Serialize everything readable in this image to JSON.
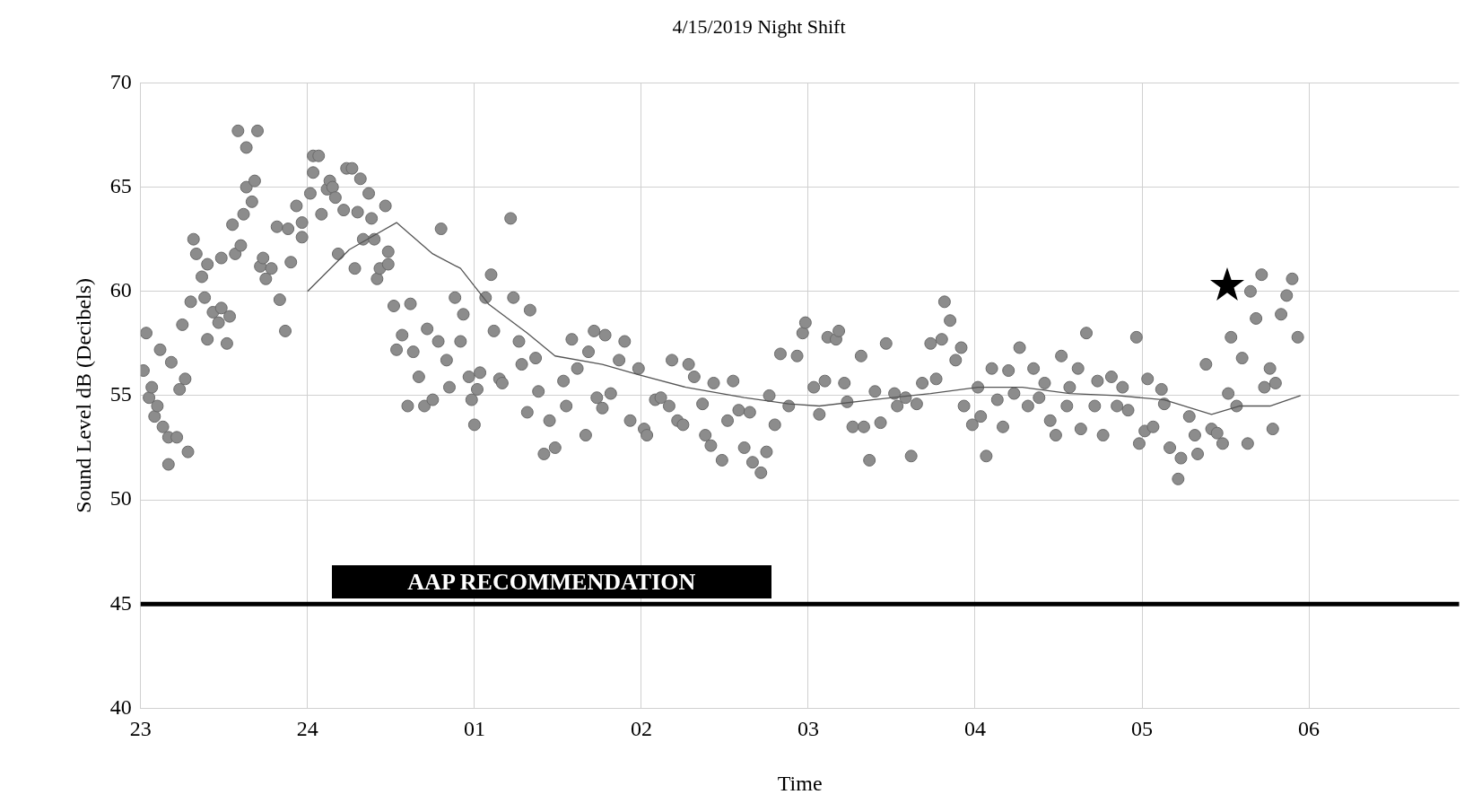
{
  "chart_data": {
    "type": "scatter",
    "title": "4/15/2019 Night Shift",
    "xlabel": "Time",
    "ylabel": "Sound Level dB (Decibels)",
    "xlim": [
      "2019-04-15T23:00",
      "2019-04-16T06:54"
    ],
    "ylim": [
      40,
      70
    ],
    "xticks": [
      {
        "value": "2019-04-15T23:00",
        "label": "23"
      },
      {
        "value": "2019-04-16T00:00",
        "label": "24"
      },
      {
        "value": "2019-04-16T01:00",
        "label": "01"
      },
      {
        "value": "2019-04-16T02:00",
        "label": "02"
      },
      {
        "value": "2019-04-16T03:00",
        "label": "03"
      },
      {
        "value": "2019-04-16T04:00",
        "label": "04"
      },
      {
        "value": "2019-04-16T05:00",
        "label": "05"
      },
      {
        "value": "2019-04-16T06:00",
        "label": "06"
      }
    ],
    "yticks": [
      40,
      45,
      50,
      55,
      60,
      65,
      70
    ],
    "grid": true,
    "legend": false,
    "marker": "circle",
    "ref_lines": [
      {
        "axis": "y",
        "value": 45,
        "label": "AAP RECOMMENDATION",
        "color": "#000000",
        "line_style": "solid"
      }
    ],
    "series": [
      {
        "color": "#8c8c8c",
        "x": [
          "2019-04-15T23:01",
          "2019-04-15T23:02",
          "2019-04-15T23:03",
          "2019-04-15T23:04",
          "2019-04-15T23:05",
          "2019-04-15T23:06",
          "2019-04-15T23:07",
          "2019-04-15T23:08",
          "2019-04-15T23:10",
          "2019-04-15T23:10",
          "2019-04-15T23:11",
          "2019-04-15T23:13",
          "2019-04-15T23:14",
          "2019-04-15T23:15",
          "2019-04-15T23:16",
          "2019-04-15T23:17",
          "2019-04-15T23:18",
          "2019-04-15T23:19",
          "2019-04-15T23:20",
          "2019-04-15T23:22",
          "2019-04-15T23:23",
          "2019-04-15T23:24",
          "2019-04-15T23:24",
          "2019-04-15T23:26",
          "2019-04-15T23:28",
          "2019-04-15T23:29",
          "2019-04-15T23:29",
          "2019-04-15T23:31",
          "2019-04-15T23:32",
          "2019-04-15T23:33",
          "2019-04-15T23:34",
          "2019-04-15T23:35",
          "2019-04-15T23:36",
          "2019-04-15T23:37",
          "2019-04-15T23:38",
          "2019-04-15T23:38",
          "2019-04-15T23:40",
          "2019-04-15T23:41",
          "2019-04-15T23:42",
          "2019-04-15T23:43",
          "2019-04-15T23:44",
          "2019-04-15T23:45",
          "2019-04-15T23:47",
          "2019-04-15T23:49",
          "2019-04-15T23:50",
          "2019-04-15T23:52",
          "2019-04-15T23:53",
          "2019-04-15T23:54",
          "2019-04-15T23:56",
          "2019-04-15T23:58",
          "2019-04-15T23:58",
          "2019-04-16T00:01",
          "2019-04-16T00:02",
          "2019-04-16T00:02",
          "2019-04-16T00:04",
          "2019-04-16T00:05",
          "2019-04-16T00:07",
          "2019-04-16T00:08",
          "2019-04-16T00:09",
          "2019-04-16T00:10",
          "2019-04-16T00:11",
          "2019-04-16T00:13",
          "2019-04-16T00:14",
          "2019-04-16T00:16",
          "2019-04-16T00:17",
          "2019-04-16T00:18",
          "2019-04-16T00:19",
          "2019-04-16T00:20",
          "2019-04-16T00:22",
          "2019-04-16T00:23",
          "2019-04-16T00:24",
          "2019-04-16T00:25",
          "2019-04-16T00:26",
          "2019-04-16T00:28",
          "2019-04-16T00:29",
          "2019-04-16T00:29",
          "2019-04-16T00:31",
          "2019-04-16T00:32",
          "2019-04-16T00:34",
          "2019-04-16T00:36",
          "2019-04-16T00:37",
          "2019-04-16T00:38",
          "2019-04-16T00:40",
          "2019-04-16T00:42",
          "2019-04-16T00:43",
          "2019-04-16T00:45",
          "2019-04-16T00:47",
          "2019-04-16T00:48",
          "2019-04-16T00:50",
          "2019-04-16T00:51",
          "2019-04-16T00:53",
          "2019-04-16T00:55",
          "2019-04-16T00:56",
          "2019-04-16T00:58",
          "2019-04-16T00:59",
          "2019-04-16T01:00",
          "2019-04-16T01:01",
          "2019-04-16T01:02",
          "2019-04-16T01:04",
          "2019-04-16T01:06",
          "2019-04-16T01:07",
          "2019-04-16T01:09",
          "2019-04-16T01:10",
          "2019-04-16T01:13",
          "2019-04-16T01:14",
          "2019-04-16T01:16",
          "2019-04-16T01:17",
          "2019-04-16T01:19",
          "2019-04-16T01:20",
          "2019-04-16T01:22",
          "2019-04-16T01:23",
          "2019-04-16T01:25",
          "2019-04-16T01:27",
          "2019-04-16T01:29",
          "2019-04-16T01:32",
          "2019-04-16T01:33",
          "2019-04-16T01:35",
          "2019-04-16T01:37",
          "2019-04-16T01:40",
          "2019-04-16T01:41",
          "2019-04-16T01:43",
          "2019-04-16T01:44",
          "2019-04-16T01:46",
          "2019-04-16T01:47",
          "2019-04-16T01:49",
          "2019-04-16T01:52",
          "2019-04-16T01:54",
          "2019-04-16T01:56",
          "2019-04-16T01:59",
          "2019-04-16T02:01",
          "2019-04-16T02:02",
          "2019-04-16T02:05",
          "2019-04-16T02:07",
          "2019-04-16T02:10",
          "2019-04-16T02:11",
          "2019-04-16T02:13",
          "2019-04-16T02:15",
          "2019-04-16T02:17",
          "2019-04-16T02:19",
          "2019-04-16T02:22",
          "2019-04-16T02:23",
          "2019-04-16T02:25",
          "2019-04-16T02:26",
          "2019-04-16T02:29",
          "2019-04-16T02:31",
          "2019-04-16T02:33",
          "2019-04-16T02:35",
          "2019-04-16T02:37",
          "2019-04-16T02:39",
          "2019-04-16T02:40",
          "2019-04-16T02:43",
          "2019-04-16T02:45",
          "2019-04-16T02:46",
          "2019-04-16T02:48",
          "2019-04-16T02:50",
          "2019-04-16T02:53",
          "2019-04-16T02:56",
          "2019-04-16T02:58",
          "2019-04-16T02:59",
          "2019-04-16T03:02",
          "2019-04-16T03:04",
          "2019-04-16T03:06",
          "2019-04-16T03:07",
          "2019-04-16T03:10",
          "2019-04-16T03:11",
          "2019-04-16T03:13",
          "2019-04-16T03:14",
          "2019-04-16T03:16",
          "2019-04-16T03:19",
          "2019-04-16T03:20",
          "2019-04-16T03:22",
          "2019-04-16T03:24",
          "2019-04-16T03:26",
          "2019-04-16T03:28",
          "2019-04-16T03:31",
          "2019-04-16T03:32",
          "2019-04-16T03:35",
          "2019-04-16T03:37",
          "2019-04-16T03:39",
          "2019-04-16T03:41",
          "2019-04-16T03:44",
          "2019-04-16T03:46",
          "2019-04-16T03:48",
          "2019-04-16T03:49",
          "2019-04-16T03:51",
          "2019-04-16T03:53",
          "2019-04-16T03:55",
          "2019-04-16T03:56",
          "2019-04-16T03:59",
          "2019-04-16T04:01",
          "2019-04-16T04:02",
          "2019-04-16T04:04",
          "2019-04-16T04:06",
          "2019-04-16T04:08",
          "2019-04-16T04:10",
          "2019-04-16T04:12",
          "2019-04-16T04:14",
          "2019-04-16T04:16",
          "2019-04-16T04:19",
          "2019-04-16T04:21",
          "2019-04-16T04:23",
          "2019-04-16T04:25",
          "2019-04-16T04:27",
          "2019-04-16T04:29",
          "2019-04-16T04:31",
          "2019-04-16T04:33",
          "2019-04-16T04:34",
          "2019-04-16T04:37",
          "2019-04-16T04:38",
          "2019-04-16T04:40",
          "2019-04-16T04:43",
          "2019-04-16T04:44",
          "2019-04-16T04:46",
          "2019-04-16T04:49",
          "2019-04-16T04:51",
          "2019-04-16T04:53",
          "2019-04-16T04:55",
          "2019-04-16T04:58",
          "2019-04-16T04:59",
          "2019-04-16T05:01",
          "2019-04-16T05:02",
          "2019-04-16T05:04",
          "2019-04-16T05:07",
          "2019-04-16T05:08",
          "2019-04-16T05:10",
          "2019-04-16T05:13",
          "2019-04-16T05:14",
          "2019-04-16T05:17",
          "2019-04-16T05:19",
          "2019-04-16T05:20",
          "2019-04-16T05:23",
          "2019-04-16T05:25",
          "2019-04-16T05:27",
          "2019-04-16T05:29",
          "2019-04-16T05:31",
          "2019-04-16T05:32",
          "2019-04-16T05:34",
          "2019-04-16T05:36",
          "2019-04-16T05:38",
          "2019-04-16T05:39",
          "2019-04-16T05:41",
          "2019-04-16T05:43",
          "2019-04-16T05:44",
          "2019-04-16T05:46",
          "2019-04-16T05:47",
          "2019-04-16T05:48",
          "2019-04-16T05:50",
          "2019-04-16T05:52",
          "2019-04-16T05:54",
          "2019-04-16T05:56"
        ],
        "values": [
          56.2,
          58,
          54.9,
          55.4,
          54,
          54.5,
          57.2,
          53.5,
          53,
          51.7,
          56.6,
          53,
          55.3,
          58.4,
          55.8,
          52.3,
          59.5,
          62.5,
          61.8,
          60.7,
          59.7,
          61.3,
          57.7,
          59,
          58.5,
          59.2,
          61.6,
          57.5,
          58.8,
          63.2,
          61.8,
          67.7,
          62.2,
          63.7,
          65,
          66.9,
          64.3,
          65.3,
          67.7,
          61.2,
          61.6,
          60.6,
          61.1,
          63.1,
          59.6,
          58.1,
          63,
          61.4,
          64.1,
          63.3,
          62.6,
          64.7,
          65.7,
          66.5,
          66.5,
          63.7,
          64.9,
          65.3,
          65,
          64.5,
          61.8,
          63.9,
          65.9,
          65.9,
          61.1,
          63.8,
          65.4,
          62.5,
          64.7,
          63.5,
          62.5,
          60.6,
          61.1,
          64.1,
          61.9,
          61.3,
          59.3,
          57.2,
          57.9,
          54.5,
          59.4,
          57.1,
          55.9,
          54.5,
          58.2,
          54.8,
          57.6,
          63,
          56.7,
          55.4,
          59.7,
          57.6,
          58.9,
          55.9,
          54.8,
          53.6,
          55.3,
          56.1,
          59.7,
          60.8,
          58.1,
          55.8,
          55.6,
          63.5,
          59.7,
          57.6,
          56.5,
          54.2,
          59.1,
          56.8,
          55.2,
          52.2,
          53.8,
          52.5,
          55.7,
          54.5,
          57.7,
          56.3,
          53.1,
          57.1,
          58.1,
          54.9,
          54.4,
          57.9,
          55.1,
          56.7,
          57.6,
          53.8,
          56.3,
          53.4,
          53.1,
          54.8,
          54.9,
          54.5,
          56.7,
          53.8,
          53.6,
          56.5,
          55.9,
          54.6,
          53.1,
          52.6,
          55.6,
          51.9,
          53.8,
          55.7,
          54.3,
          52.5,
          54.2,
          51.8,
          51.3,
          52.3,
          55,
          53.6,
          57,
          54.5,
          56.9,
          58,
          58.5,
          55.4,
          54.1,
          55.7,
          57.8,
          57.7,
          58.1,
          55.6,
          54.7,
          53.5,
          56.9,
          53.5,
          51.9,
          55.2,
          53.7,
          57.5,
          55.1,
          54.5,
          54.9,
          52.1,
          54.6,
          55.6,
          57.5,
          55.8,
          57.7,
          59.5,
          58.6,
          56.7,
          57.3,
          54.5,
          53.6,
          55.4,
          54,
          52.1,
          56.3,
          54.8,
          53.5,
          56.2,
          55.1,
          57.3,
          54.5,
          56.3,
          54.9,
          55.6,
          53.8,
          53.1,
          56.9,
          54.5,
          55.4,
          56.3,
          53.4,
          58,
          54.5,
          55.7,
          53.1,
          55.9,
          54.5,
          55.4,
          54.3,
          57.8,
          52.7,
          53.3,
          55.8,
          53.5,
          55.3,
          54.6,
          52.5,
          51,
          52,
          54,
          53.1,
          52.2,
          56.5,
          53.4,
          53.2,
          52.7,
          55.1,
          57.8,
          54.5,
          56.8,
          52.7,
          60,
          58.7,
          60.8,
          55.4,
          56.3,
          53.4,
          55.6,
          58.9,
          59.8,
          60.6,
          57.8
        ]
      },
      {
        "type": "line",
        "color": "#555555",
        "marker": "none",
        "line_style": "solid",
        "x": [
          "2019-04-16T00:00",
          "2019-04-16T00:15",
          "2019-04-16T00:32",
          "2019-04-16T00:45",
          "2019-04-16T00:55",
          "2019-04-16T01:05",
          "2019-04-16T01:19",
          "2019-04-16T01:29",
          "2019-04-16T01:46",
          "2019-04-16T01:59",
          "2019-04-16T02:16",
          "2019-04-16T02:37",
          "2019-04-16T02:53",
          "2019-04-16T03:04",
          "2019-04-16T03:23",
          "2019-04-16T03:44",
          "2019-04-16T04:01",
          "2019-04-16T04:17",
          "2019-04-16T04:34",
          "2019-04-16T04:51",
          "2019-04-16T05:08",
          "2019-04-16T05:25",
          "2019-04-16T05:35",
          "2019-04-16T05:46",
          "2019-04-16T05:57"
        ],
        "values": [
          60,
          62,
          63.3,
          61.8,
          61.1,
          59.4,
          58,
          56.9,
          56.5,
          56,
          55.4,
          54.9,
          54.6,
          54.5,
          54.8,
          55.1,
          55.4,
          55.4,
          55.1,
          55,
          54.8,
          54.1,
          54.5,
          54.5,
          55
        ]
      }
    ]
  }
}
